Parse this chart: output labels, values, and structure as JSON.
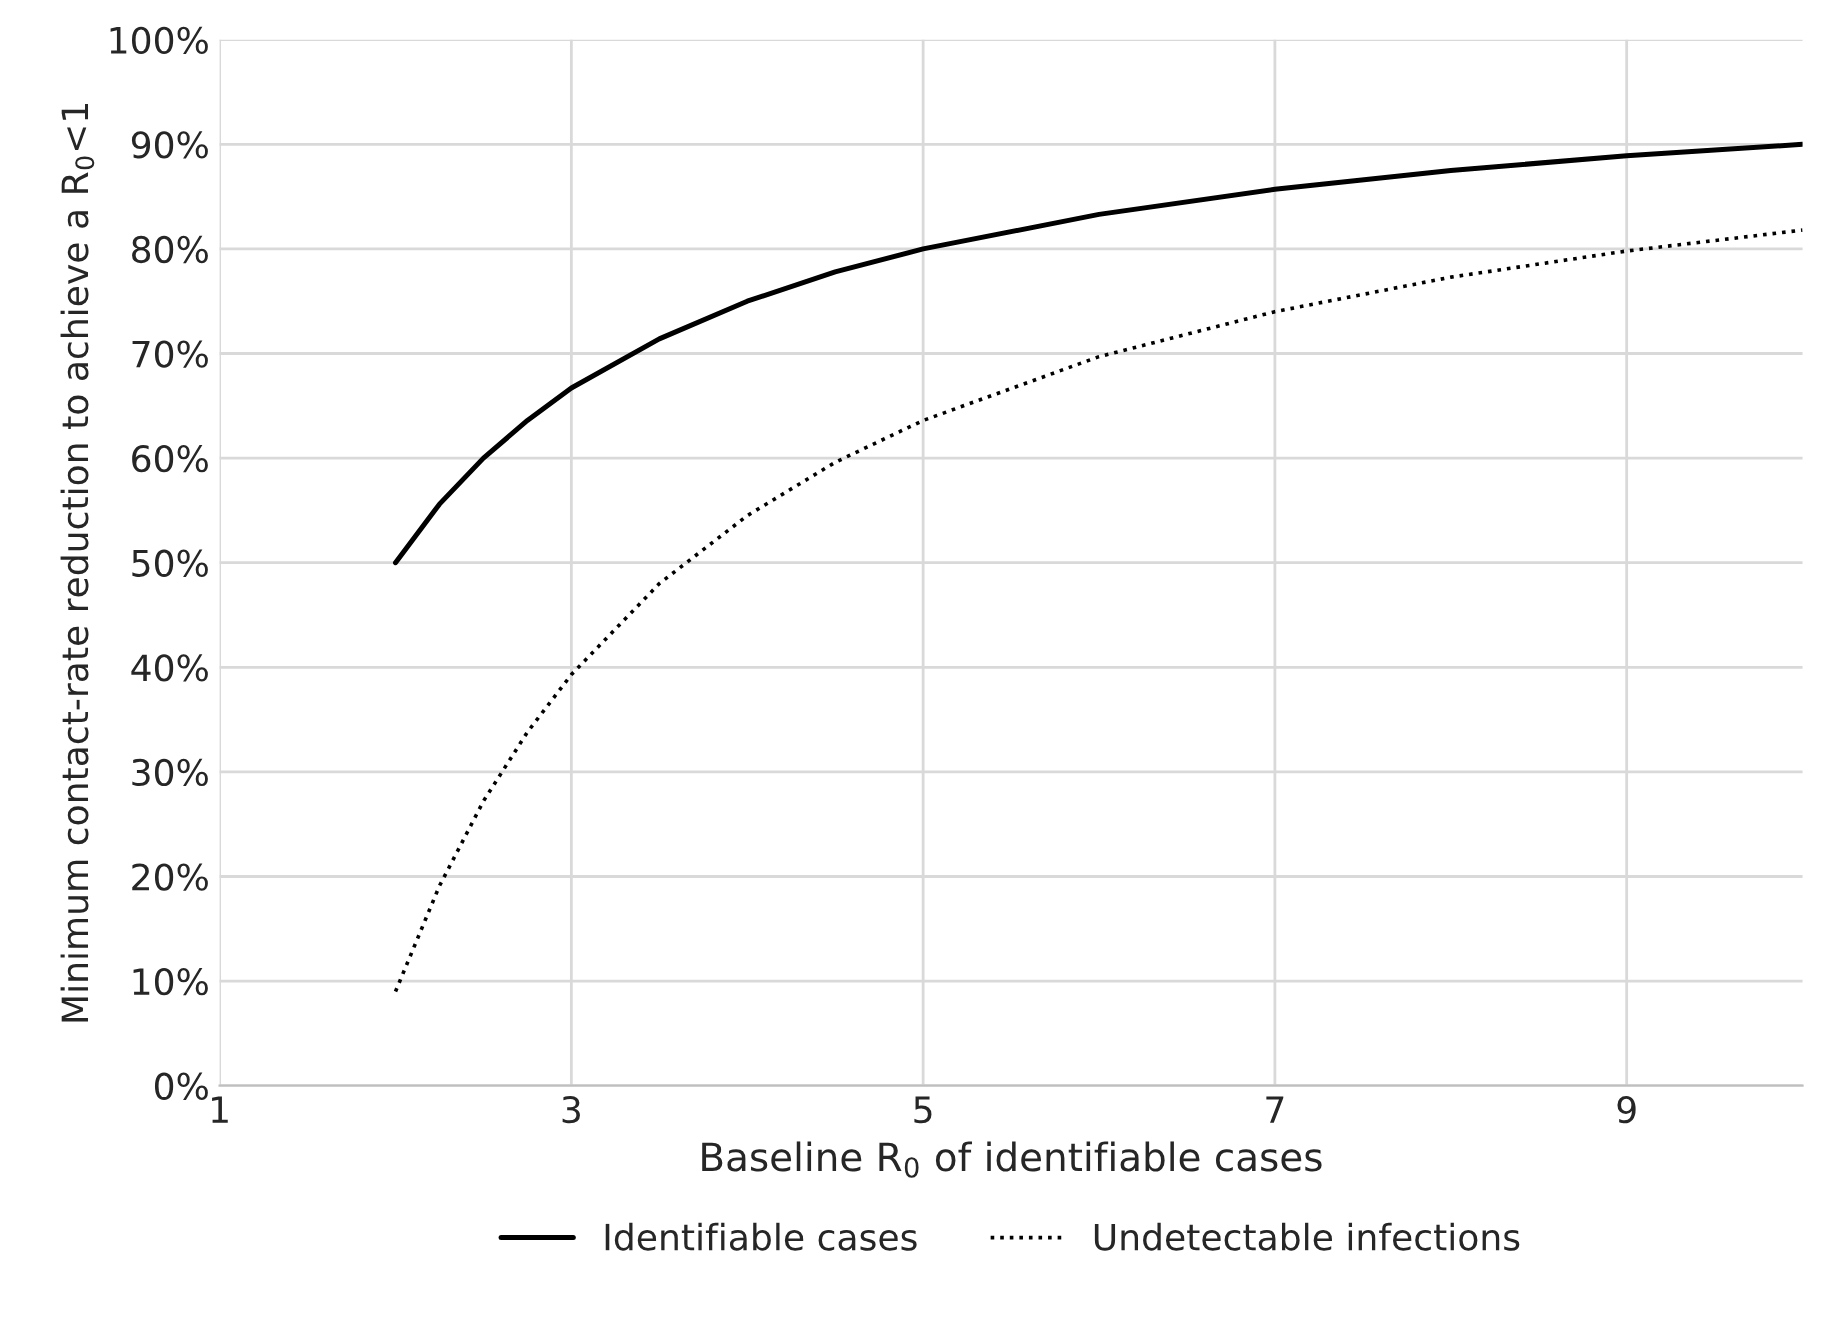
{
  "chart_data": {
    "type": "line",
    "xlabel": "Baseline R$_{0}$ of identifiable cases",
    "ylabel": "Minimum contact-rate reduction to achieve a R$_{0}$<1",
    "x": [
      2,
      2.25,
      2.5,
      2.75,
      3,
      3.5,
      4,
      4.5,
      5,
      6,
      7,
      8,
      9,
      10
    ],
    "series": [
      {
        "name": "Identifiable cases",
        "color": "#000000",
        "line_style": "solid",
        "values": [
          50,
          55.6,
          60,
          63.6,
          66.7,
          71.4,
          75,
          77.8,
          80,
          83.3,
          85.7,
          87.5,
          88.9,
          90
        ]
      },
      {
        "name": "Undetectable infections",
        "color": "#000000",
        "line_style": "dotted",
        "values": [
          9,
          19.1,
          27.2,
          33.8,
          39.3,
          48,
          54.5,
          59.6,
          63.6,
          69.7,
          74,
          77.3,
          79.8,
          81.8
        ]
      }
    ],
    "xlim": [
      1,
      10
    ],
    "xticks": [
      1,
      3,
      5,
      7,
      9
    ],
    "ylim": [
      0,
      100
    ],
    "yticks": [
      {
        "value": 0,
        "label": "0%"
      },
      {
        "value": 10,
        "label": "10%"
      },
      {
        "value": 20,
        "label": "20%"
      },
      {
        "value": 30,
        "label": "30%"
      },
      {
        "value": 40,
        "label": "40%"
      },
      {
        "value": 50,
        "label": "50%"
      },
      {
        "value": 60,
        "label": "60%"
      },
      {
        "value": 70,
        "label": "70%"
      },
      {
        "value": 80,
        "label": "80%"
      },
      {
        "value": 90,
        "label": "90%"
      },
      {
        "value": 100,
        "label": "100%"
      }
    ],
    "grid": true,
    "legend": "bottom",
    "marker": "none"
  }
}
